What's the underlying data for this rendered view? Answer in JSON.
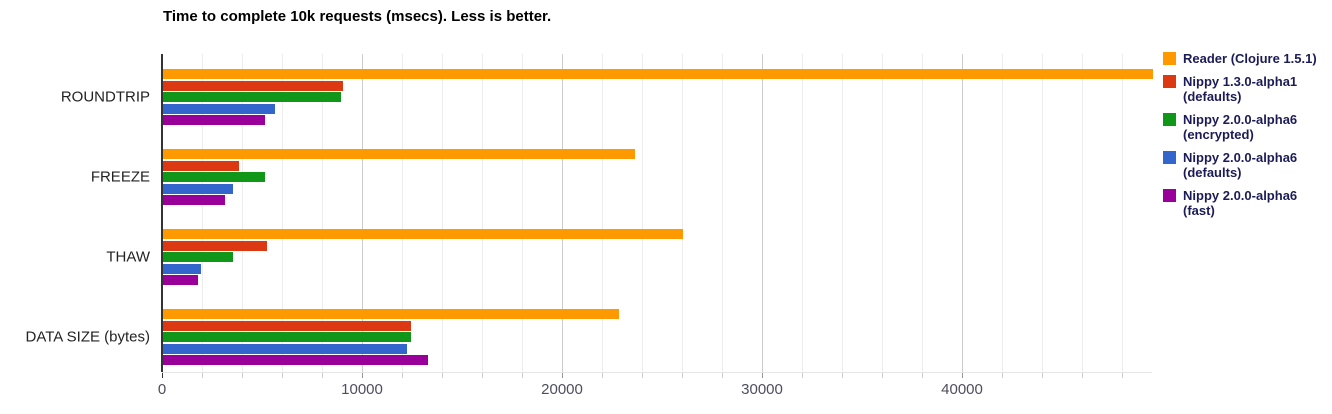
{
  "chart_data": {
    "type": "bar",
    "orientation": "horizontal",
    "title": "Time to complete 10k requests (msecs). Less is better.",
    "categories": [
      "ROUNDTRIP",
      "FREEZE",
      "THAW",
      "DATA SIZE (bytes)"
    ],
    "series": [
      {
        "name": "Reader (Clojure 1.5.1)",
        "color": "#FF9900",
        "values": [
          49500,
          23600,
          26000,
          22800
        ]
      },
      {
        "name": "Nippy 1.3.0-alpha1 (defaults)",
        "color": "#DC3912",
        "values": [
          9000,
          3800,
          5200,
          12400
        ]
      },
      {
        "name": "Nippy 2.0.0-alpha6 (encrypted)",
        "color": "#109618",
        "values": [
          8900,
          5100,
          3500,
          12400
        ]
      },
      {
        "name": "Nippy 2.0.0-alpha6 (defaults)",
        "color": "#3366CC",
        "values": [
          5600,
          3500,
          1900,
          12200
        ]
      },
      {
        "name": "Nippy 2.0.0-alpha6 (fast)",
        "color": "#990099",
        "values": [
          5100,
          3100,
          1750,
          13250
        ]
      }
    ],
    "x_axis": {
      "tick_labels": [
        "0",
        "10000",
        "20000",
        "30000",
        "40000"
      ],
      "tick_values": [
        0,
        10000,
        20000,
        30000,
        40000
      ],
      "minor_gridline_step": 2000,
      "min": 0,
      "max": 49500
    },
    "legend_position": "right",
    "grid": "vertical-only",
    "style_colors": {
      "axis_line": "#333333",
      "major_gridline": "#cccccc",
      "minor_gridline": "#ededed",
      "tick_label": "#4d4d5e",
      "category_label": "#222222",
      "legend_text": "#1b1b57"
    }
  }
}
